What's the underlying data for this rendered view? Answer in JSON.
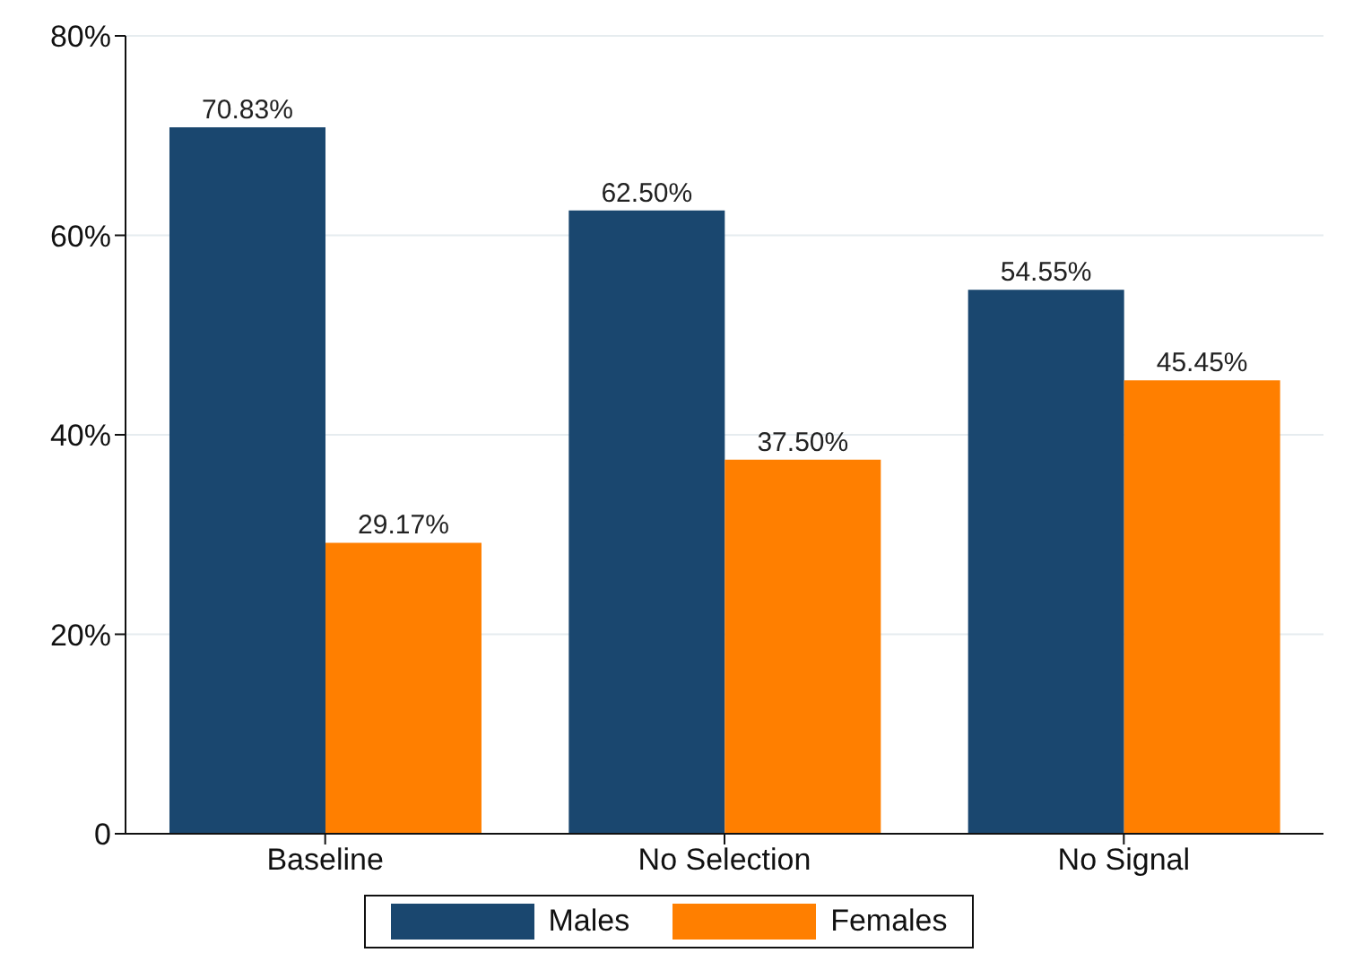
{
  "chart_data": {
    "type": "bar",
    "categories": [
      "Baseline",
      "No Selection",
      "No Signal"
    ],
    "series": [
      {
        "name": "Males",
        "color": "#1a476f",
        "values": [
          70.83,
          62.5,
          54.55
        ],
        "value_labels": [
          "70.83%",
          "62.50%",
          "54.55%"
        ]
      },
      {
        "name": "Females",
        "color": "#ff7f00",
        "values": [
          29.17,
          37.5,
          45.45
        ],
        "value_labels": [
          "29.17%",
          "37.50%",
          "45.45%"
        ]
      }
    ],
    "ylim": [
      0,
      80
    ],
    "yticks": [
      0,
      {
        "value": 20,
        "label": "20%"
      },
      {
        "value": 40,
        "label": "40%"
      },
      {
        "value": 60,
        "label": "60%"
      },
      {
        "value": 80,
        "label": "80%"
      }
    ],
    "grid": "y",
    "legend": "bottom"
  }
}
